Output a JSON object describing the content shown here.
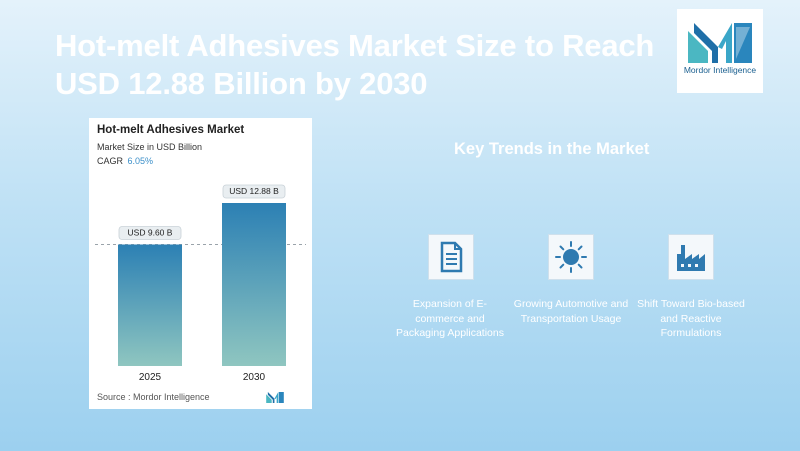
{
  "headline": "Hot-melt Adhesives Market Size to Reach USD 12.88 Billion by 2030",
  "logo": {
    "name": "Mordor Intelligence"
  },
  "card": {
    "title": "Hot-melt Adhesives Market",
    "subtitle": "Market Size in USD Billion",
    "cagr_label": "CAGR",
    "cagr_value": "6.05%",
    "source": "Source : Mordor Intelligence"
  },
  "chart_data": {
    "type": "bar",
    "title": "Hot-melt Adhesives Market",
    "ylabel": "Market Size in USD Billion",
    "categories": [
      "2025",
      "2030"
    ],
    "values": [
      9.6,
      12.88
    ],
    "data_labels": [
      "USD 9.60 B",
      "USD 12.88 B"
    ],
    "ylim": [
      0,
      12.88
    ],
    "grid": false,
    "reference_line": "dashed line at 2025 value",
    "colors": {
      "bar_top": "#2c80b4",
      "bar_bottom": "#8fc6c0"
    }
  },
  "trends": {
    "title": "Key Trends in the Market",
    "items": [
      {
        "icon": "document-icon",
        "text": "Expansion of E-commerce and Packaging Applications"
      },
      {
        "icon": "sun-icon",
        "text": "Growing Automotive and Transportation Usage"
      },
      {
        "icon": "factory-icon",
        "text": "Shift Toward Bio-based and Reactive Formulations"
      }
    ]
  },
  "colors": {
    "accent": "#1a5f8f",
    "icon_blue": "#2f7ab0"
  }
}
